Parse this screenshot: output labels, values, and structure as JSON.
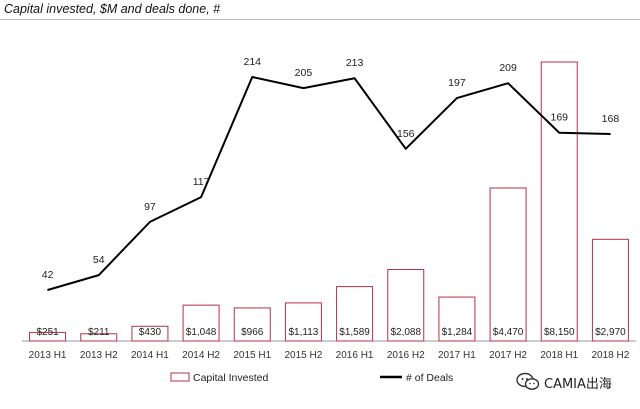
{
  "chart_data": {
    "type": "bar",
    "title": "Capital invested, $M and deals done, #",
    "categories": [
      "2013 H1",
      "2013 H2",
      "2014 H1",
      "2014 H2",
      "2015 H1",
      "2015 H2",
      "2016 H1",
      "2016 H2",
      "2017 H1",
      "2017 H2",
      "2018 H1",
      "2018 H2"
    ],
    "series": [
      {
        "name": "Capital Invested",
        "kind": "bar",
        "values": [
          251,
          211,
          430,
          1048,
          966,
          1113,
          1589,
          2088,
          1284,
          4470,
          8150,
          2970
        ],
        "labels": [
          "$251",
          "$211",
          "$430",
          "$1,048",
          "$966",
          "$1,113",
          "$1,589",
          "$2,088",
          "$1,284",
          "$4,470",
          "$8,150",
          "$2,970"
        ],
        "color": "#b5304a"
      },
      {
        "name": "# of Deals",
        "kind": "line",
        "values": [
          42,
          54,
          97,
          117,
          214,
          205,
          213,
          156,
          197,
          209,
          169,
          168
        ],
        "labels": [
          "42",
          "54",
          "97",
          "117",
          "214",
          "205",
          "213",
          "156",
          "197",
          "209",
          "169",
          "168"
        ],
        "color": "#000000"
      }
    ],
    "ylim_capital": [
      0,
      8150
    ],
    "ylim_deals": [
      0,
      240
    ],
    "grid": false,
    "legend": "bottom"
  },
  "watermark": {
    "text": "CAMIA出海",
    "icon": "wechat-icon"
  }
}
